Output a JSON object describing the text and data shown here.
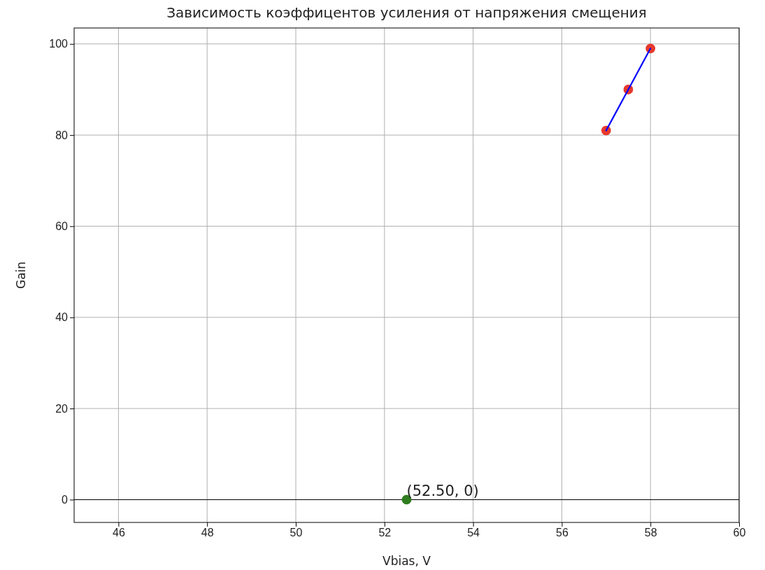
{
  "chart_data": {
    "type": "scatter",
    "title": "Зависимость коэффицентов усиления от напряжения смещения",
    "xlabel": "Vbias, V",
    "ylabel": "Gain",
    "series": [
      {
        "color": "#e8392c",
        "x": [
          57,
          57.5,
          58
        ],
        "values": [
          81,
          90,
          99
        ]
      },
      {
        "type": "line",
        "marker": "none",
        "color": "#0000ff",
        "x": [
          57,
          57.5,
          58
        ],
        "values": [
          81,
          90,
          99
        ]
      },
      {
        "color": "#2e7d1f",
        "x": [
          52.5
        ],
        "values": [
          0
        ]
      }
    ],
    "xlim": [
      45,
      60
    ],
    "xticks": [
      46,
      48,
      50,
      52,
      54,
      56,
      58,
      60
    ],
    "ylim": [
      -5,
      103.5
    ],
    "yticks": [
      0,
      20,
      40,
      60,
      80,
      100
    ],
    "ref_lines": [
      {
        "axis": "y",
        "value": 0,
        "color": "#000000"
      }
    ],
    "annotations": [
      {
        "text": "(52.50, 0)",
        "x": 52.5,
        "y": 0
      }
    ],
    "grid": true,
    "marker": "circle",
    "line_style": "solid"
  }
}
